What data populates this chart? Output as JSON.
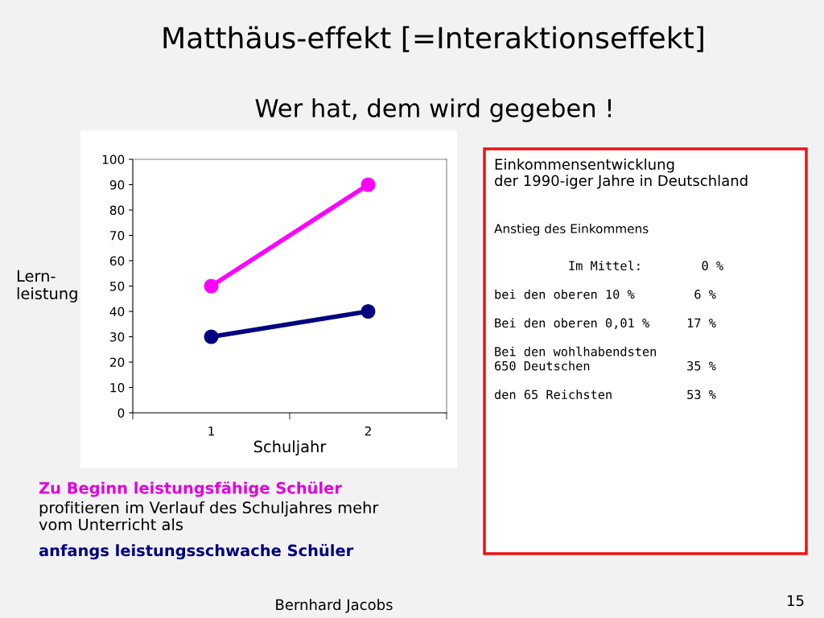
{
  "chart_data": {
    "type": "line",
    "title": "Matthäus-effekt [=Interaktionseffekt]",
    "subtitle": "Wer hat, dem wird gegeben !",
    "xlabel": "Schuljahr",
    "ylabel": "Lern-\nleistung",
    "categories": [
      "1",
      "2"
    ],
    "series": [
      {
        "color": "#ff00ff",
        "values": [
          50,
          90
        ]
      },
      {
        "color": "#000080",
        "values": [
          30,
          40
        ]
      }
    ],
    "ylim": [
      0,
      100
    ],
    "yticks": [
      0,
      10,
      20,
      30,
      40,
      50,
      60,
      70,
      80,
      90,
      100
    ],
    "grid": false,
    "legend": false,
    "marker": "circle",
    "line_style": "solid",
    "annotations": [
      "Zu Beginn leistungsfähige Schüler",
      "profitieren im Verlauf des Schuljahres mehr\nvom Unterricht als",
      "anfangs leistungsschwache Schüler",
      "Einkommensentwicklung\nder 1990-iger Jahre in Deutschland",
      "Anstieg des Einkommens",
      "          Im Mittel:        0 %\n\nbei den oberen 10 %        6 %\n\nBei den oberen 0,01 %     17 %\n\nBei den wohlhabendsten\n650 Deutschen             35 %\n\nden 65 Reichsten          53 %",
      "Bernhard Jacobs",
      "15"
    ]
  }
}
